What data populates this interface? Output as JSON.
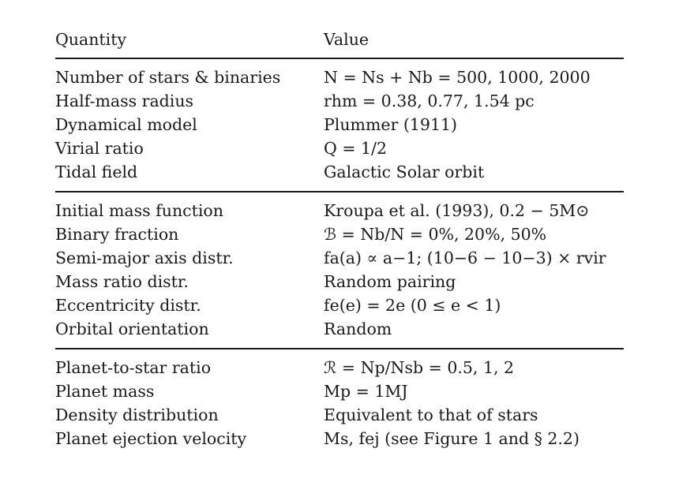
{
  "table": {
    "header": {
      "quantity": "Quantity",
      "value": "Value"
    },
    "groups": [
      {
        "rows": [
          {
            "quantity": "Number of stars & binaries",
            "value": "N = Ns + Nb = 500, 1000, 2000"
          },
          {
            "quantity": "Half-mass radius",
            "value": "rhm = 0.38, 0.77, 1.54 pc"
          },
          {
            "quantity": "Dynamical model",
            "value": "Plummer  (1911)"
          },
          {
            "quantity": "Virial ratio",
            "value": "Q = 1/2"
          },
          {
            "quantity": "Tidal field",
            "value": "Galactic Solar orbit"
          }
        ]
      },
      {
        "rows": [
          {
            "quantity": "Initial mass function",
            "value": "Kroupa et al. (1993), 0.2 − 5M⊙"
          },
          {
            "quantity": "Binary fraction",
            "value": "ℬ = Nb/N = 0%, 20%, 50%"
          },
          {
            "quantity": "Semi-major axis distr.",
            "value": "fa(a) ∝ a−1; (10−6 − 10−3) × rvir"
          },
          {
            "quantity": "Mass ratio distr.",
            "value": "Random pairing"
          },
          {
            "quantity": "Eccentricity distr.",
            "value": "fe(e) = 2e (0 ≤ e < 1)"
          },
          {
            "quantity": "Orbital orientation",
            "value": "Random"
          }
        ]
      },
      {
        "rows": [
          {
            "quantity": "Planet-to-star ratio",
            "value": "ℛ = Np/Nsb = 0.5, 1, 2"
          },
          {
            "quantity": "Planet mass",
            "value": "Mp = 1MJ"
          },
          {
            "quantity": "Density distribution",
            "value": "Equivalent to that of stars"
          },
          {
            "quantity": "Planet ejection velocity",
            "value": "Ms, fej (see Figure 1 and § 2.2)"
          }
        ]
      }
    ]
  }
}
